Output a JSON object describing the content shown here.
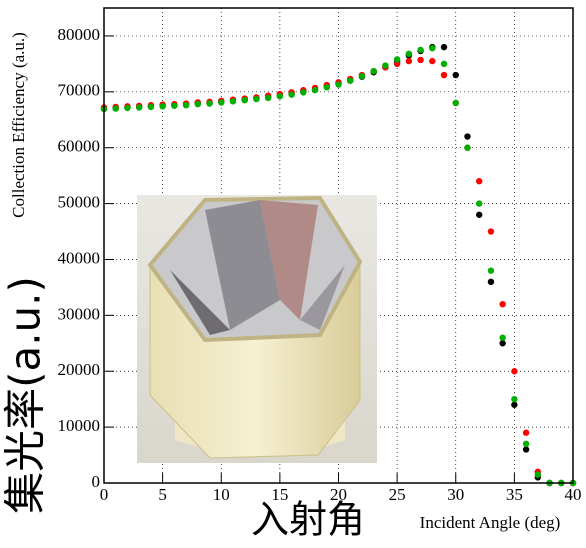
{
  "chart_data": {
    "type": "scatter",
    "y_label": "Collection Efficiency (a.u.)",
    "x_label": "Incident Angle (deg)",
    "y_label_ja": "集光率(a.u.)",
    "x_label_ja": "入射角",
    "x": [
      0,
      1,
      2,
      3,
      4,
      5,
      6,
      7,
      8,
      9,
      10,
      11,
      12,
      13,
      14,
      15,
      16,
      17,
      18,
      19,
      20,
      21,
      22,
      23,
      24,
      25,
      26,
      27,
      28,
      29,
      30,
      31,
      32,
      33,
      34,
      35,
      36,
      37,
      38,
      39,
      40
    ],
    "series": [
      {
        "color": "#000000",
        "values": [
          67000,
          67100,
          67200,
          67300,
          67400,
          67500,
          67600,
          67700,
          67900,
          68000,
          68200,
          68400,
          68600,
          68800,
          69000,
          69300,
          69600,
          70000,
          70400,
          70900,
          71400,
          72000,
          72700,
          73500,
          74400,
          75400,
          76500,
          77300,
          78000,
          78000,
          73000,
          62000,
          48000,
          36000,
          25000,
          14000,
          6000,
          1000,
          0,
          0,
          0
        ]
      },
      {
        "color": "#ff0000",
        "values": [
          67200,
          67300,
          67400,
          67500,
          67600,
          67700,
          67800,
          67900,
          68100,
          68200,
          68400,
          68600,
          68800,
          69000,
          69300,
          69600,
          69900,
          70300,
          70700,
          71200,
          71700,
          72300,
          73000,
          73700,
          74400,
          75000,
          75500,
          75700,
          75500,
          73000,
          68000,
          60000,
          54000,
          45000,
          32000,
          20000,
          9000,
          2000,
          0,
          0,
          0
        ]
      },
      {
        "color": "#00b000",
        "values": [
          66900,
          67000,
          67100,
          67200,
          67300,
          67400,
          67500,
          67600,
          67800,
          67900,
          68100,
          68300,
          68500,
          68700,
          68900,
          69200,
          69500,
          69900,
          70300,
          70800,
          71300,
          72000,
          72800,
          73700,
          74700,
          75800,
          76800,
          77500,
          77800,
          75000,
          68000,
          60000,
          50000,
          38000,
          26000,
          15000,
          7000,
          1500,
          0,
          0,
          0
        ]
      }
    ],
    "xlim": [
      0,
      40
    ],
    "ylim": [
      0,
      85000
    ],
    "xticks": [
      0,
      5,
      10,
      15,
      20,
      25,
      30,
      35,
      40
    ],
    "yticks": [
      0,
      10000,
      20000,
      30000,
      40000,
      50000,
      60000,
      70000,
      80000
    ],
    "grid": true
  }
}
